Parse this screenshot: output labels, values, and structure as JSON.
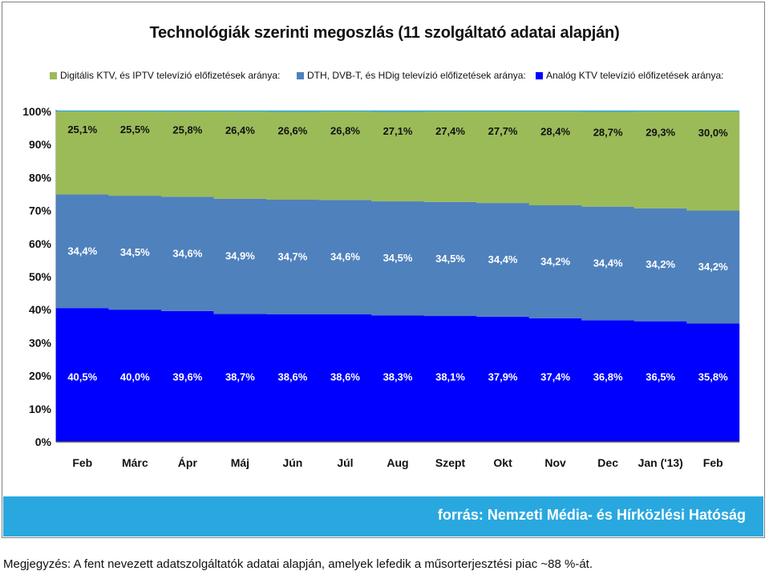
{
  "chart_data": {
    "type": "bar",
    "stacked": true,
    "percent": true,
    "title": "Technológiák szerinti megoszlás (11 szolgáltató adatai alapján)",
    "categories": [
      "Feb",
      "Márc",
      "Ápr",
      "Máj",
      "Jún",
      "Júl",
      "Aug",
      "Szept",
      "Okt",
      "Nov",
      "Dec",
      "Jan ('13)",
      "Feb"
    ],
    "series": [
      {
        "name": "Analóg KTV televízió előfizetések aránya:",
        "color": "#0000ff",
        "values": [
          40.5,
          40.0,
          39.6,
          38.7,
          38.6,
          38.6,
          38.3,
          38.1,
          37.9,
          37.4,
          36.8,
          36.5,
          35.8
        ],
        "labels": [
          "40,5%",
          "40,0%",
          "39,6%",
          "38,7%",
          "38,6%",
          "38,6%",
          "38,3%",
          "38,1%",
          "37,9%",
          "37,4%",
          "36,8%",
          "36,5%",
          "35,8%"
        ]
      },
      {
        "name": "DTH, DVB-T, és HDig televízió előfizetések aránya:",
        "color": "#4f81bd",
        "values": [
          34.4,
          34.5,
          34.6,
          34.9,
          34.7,
          34.6,
          34.5,
          34.5,
          34.4,
          34.2,
          34.4,
          34.2,
          34.2
        ],
        "labels": [
          "34,4%",
          "34,5%",
          "34,6%",
          "34,9%",
          "34,7%",
          "34,6%",
          "34,5%",
          "34,5%",
          "34,4%",
          "34,2%",
          "34,4%",
          "34,2%",
          "34,2%"
        ]
      },
      {
        "name": "Digitális KTV, és IPTV televízió előfizetések aránya:",
        "color": "#9bbb59",
        "values": [
          25.1,
          25.5,
          25.8,
          26.4,
          26.6,
          26.8,
          27.1,
          27.4,
          27.7,
          28.4,
          28.7,
          29.3,
          30.0
        ],
        "labels": [
          "25,1%",
          "25,5%",
          "25,8%",
          "26,4%",
          "26,6%",
          "26,8%",
          "27,1%",
          "27,4%",
          "27,7%",
          "28,4%",
          "28,7%",
          "29,3%",
          "30,0%"
        ]
      }
    ],
    "legend_order": [
      2,
      1,
      0
    ],
    "ylim": [
      0,
      100
    ],
    "yticks": [
      "0%",
      "10%",
      "20%",
      "30%",
      "40%",
      "50%",
      "60%",
      "70%",
      "80%",
      "90%",
      "100%"
    ],
    "grid": true,
    "gridline_color": "#29a8e0",
    "legend": "top"
  },
  "source": "forrás: Nemzeti Média- és Hírközlési Hatóság",
  "note": "Megjegyzés: A fent nevezett adatszolgáltatók adatai alapján, amelyek lefedik a műsorterjesztési piac ~88 %-át.",
  "colors": {
    "source_bar": "#29a8e0",
    "source_text": "#ffffff"
  }
}
